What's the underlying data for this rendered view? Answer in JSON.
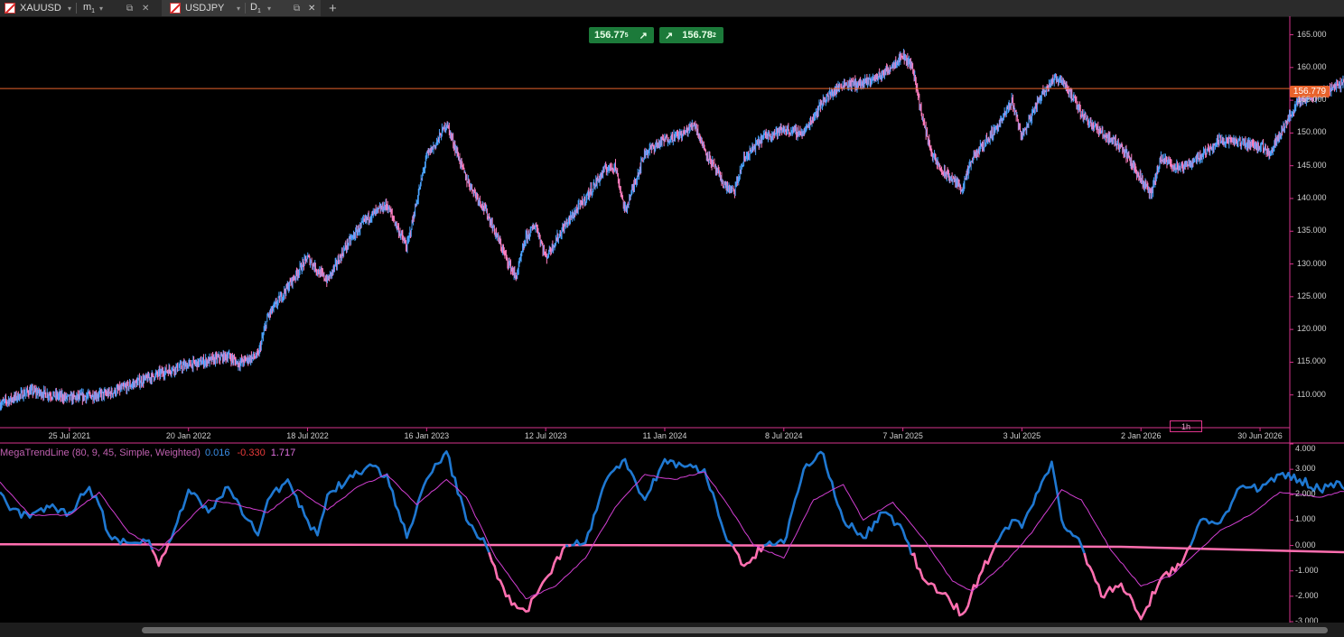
{
  "tabs": [
    {
      "symbol": "XAUUSD",
      "timeframe": "m",
      "timeframe_sub": "1"
    },
    {
      "symbol": "USDJPY",
      "timeframe": "D",
      "timeframe_sub": "1"
    }
  ],
  "controls": {
    "dropdown_glyph": "▾",
    "detach_glyph": "⧉",
    "close_glyph": "✕",
    "new_tab_glyph": "+"
  },
  "trade": {
    "sell_main": "156.77",
    "sell_sup": "5",
    "sell_arrow": "↗",
    "buy_arrow": "↗",
    "buy_main": "156.78",
    "buy_sup": "2",
    "sell_color": "#1c7a3a",
    "buy_color": "#1c7a3a"
  },
  "current_price": "156.779",
  "timeframe_badge": "1h",
  "indicator": {
    "name": "MegaTrendLine (80, 9, 45, Simple, Weighted)",
    "v1": "0.016",
    "v2": "-0.330",
    "v3": "1.717"
  },
  "colors": {
    "candle_up": "#4aa3ff",
    "candle_down": "#ff7fbf",
    "price_line": "#e8632c",
    "axis": "#d6338c",
    "ind_up": "#1f78d1",
    "ind_down": "#ff6fb0",
    "ind_signal": "#d23fd2"
  },
  "chart_data": [
    {
      "type": "candlestick",
      "title": "USDJPY D1",
      "ylim": [
        105,
        167
      ],
      "y_ticks": [
        "110.000",
        "115.000",
        "120.000",
        "125.000",
        "130.000",
        "135.000",
        "140.000",
        "145.000",
        "150.000",
        "155.000",
        "160.000",
        "165.000"
      ],
      "x_ticks": [
        "25 Jul 2021",
        "20 Jan 2022",
        "18 Jul 2022",
        "16 Jan 2023",
        "12 Jul 2023",
        "11 Jan 2024",
        "8 Jul 2024",
        "7 Jan 2025",
        "3 Jul 2025",
        "2 Jan 2026",
        "30 Jun 2026"
      ],
      "x_tick_months": [
        7,
        13,
        19,
        25,
        31,
        37,
        43,
        49,
        55,
        61,
        67
      ],
      "x_start_month": 3.5,
      "x_end_month": 68.5,
      "last_month": 62.9,
      "close_path": [
        [
          3.5,
          108.6
        ],
        [
          5,
          110.6
        ],
        [
          7,
          109.5
        ],
        [
          9,
          110.2
        ],
        [
          11,
          112.6
        ],
        [
          12,
          113.8
        ],
        [
          13,
          114.6
        ],
        [
          14,
          115.2
        ],
        [
          15,
          116.0
        ],
        [
          15.5,
          114.8
        ],
        [
          16,
          115.5
        ],
        [
          16.5,
          116.0
        ],
        [
          17,
          122
        ],
        [
          18,
          126.5
        ],
        [
          19,
          131
        ],
        [
          19.5,
          129
        ],
        [
          20,
          127.5
        ],
        [
          21,
          133
        ],
        [
          22,
          137
        ],
        [
          23,
          139
        ],
        [
          24,
          132.5
        ],
        [
          25,
          146.5
        ],
        [
          25.5,
          148.5
        ],
        [
          26,
          151.5
        ],
        [
          27,
          143
        ],
        [
          28,
          138
        ],
        [
          29,
          131
        ],
        [
          29.5,
          127.9
        ],
        [
          30,
          134
        ],
        [
          30.5,
          136
        ],
        [
          31,
          131
        ],
        [
          32,
          136
        ],
        [
          33,
          140
        ],
        [
          34,
          144.5
        ],
        [
          34.5,
          145
        ],
        [
          35,
          138
        ],
        [
          36,
          147
        ],
        [
          37,
          149
        ],
        [
          38,
          150
        ],
        [
          38.5,
          151.5
        ],
        [
          39,
          147.5
        ],
        [
          40,
          142
        ],
        [
          40.5,
          141
        ],
        [
          41,
          146
        ],
        [
          42,
          149.5
        ],
        [
          43,
          150.5
        ],
        [
          44,
          150
        ],
        [
          45,
          155
        ],
        [
          46,
          157.5
        ],
        [
          47,
          157.5
        ],
        [
          48,
          159
        ],
        [
          49,
          161.9
        ],
        [
          49.5,
          160
        ],
        [
          50,
          152
        ],
        [
          50.5,
          146.5
        ],
        [
          51,
          144
        ],
        [
          51.5,
          143
        ],
        [
          52,
          141.5
        ],
        [
          52.5,
          146
        ],
        [
          53,
          148
        ],
        [
          54,
          152
        ],
        [
          54.5,
          155
        ],
        [
          55,
          149.5
        ],
        [
          56,
          156
        ],
        [
          56.5,
          158
        ],
        [
          57,
          158.3
        ],
        [
          58,
          153
        ],
        [
          59,
          150
        ],
        [
          60,
          148
        ],
        [
          61,
          143
        ],
        [
          61.5,
          140.5
        ],
        [
          62,
          146
        ],
        [
          63,
          144.5
        ],
        [
          64,
          146.5
        ],
        [
          65,
          149
        ],
        [
          66,
          148.5
        ],
        [
          67,
          148
        ],
        [
          67.5,
          147
        ],
        [
          68,
          150
        ],
        [
          69,
          155
        ],
        [
          70,
          156
        ],
        [
          71,
          157.5
        ],
        [
          72,
          158.5
        ],
        [
          73,
          156
        ],
        [
          74,
          158
        ],
        [
          74.5,
          159.5
        ],
        [
          75,
          153
        ],
        [
          75.5,
          157
        ],
        [
          76,
          153
        ],
        [
          77,
          158.5
        ],
        [
          78,
          160
        ],
        [
          79,
          159
        ],
        [
          79.5,
          156.8
        ]
      ],
      "months_per_candle": 0.033
    },
    {
      "type": "line",
      "title": "MegaTrendLine (80, 9, 45, Simple, Weighted)",
      "ylim": [
        -3,
        4
      ],
      "y_ticks": [
        "4.000",
        "3.000",
        "2.000",
        "1.000",
        "0.000",
        "-1.000",
        "-2.000",
        "-3.000"
      ],
      "series": [
        {
          "name": "Osc",
          "path": [
            [
              3.5,
              2.1
            ],
            [
              4,
              1.4
            ],
            [
              5,
              1.1
            ],
            [
              6,
              1.5
            ],
            [
              7,
              1.3
            ],
            [
              8,
              2.3
            ],
            [
              8.5,
              1.6
            ],
            [
              9,
              0.4
            ],
            [
              10,
              0.1
            ],
            [
              11,
              0.2
            ],
            [
              11.5,
              -0.8
            ],
            [
              12,
              0.1
            ],
            [
              13,
              2.2
            ],
            [
              14,
              1.3
            ],
            [
              15,
              2.3
            ],
            [
              16,
              1.0
            ],
            [
              16.5,
              0.4
            ],
            [
              17,
              1.8
            ],
            [
              18,
              2.6
            ],
            [
              19,
              1.0
            ],
            [
              19.5,
              0.4
            ],
            [
              20,
              2.0
            ],
            [
              21,
              2.6
            ],
            [
              22,
              3.1
            ],
            [
              23,
              2.8
            ],
            [
              24,
              0.3
            ],
            [
              25,
              2.6
            ],
            [
              26,
              3.7
            ],
            [
              27,
              1.0
            ],
            [
              28,
              0.0
            ],
            [
              29,
              -2.0
            ],
            [
              30,
              -2.6
            ],
            [
              31,
              -1.3
            ],
            [
              32,
              0.0
            ],
            [
              33,
              0.1
            ],
            [
              34,
              2.5
            ],
            [
              35,
              3.4
            ],
            [
              36,
              1.8
            ],
            [
              37,
              3.4
            ],
            [
              38,
              3.1
            ],
            [
              39,
              3.0
            ],
            [
              40,
              0.5
            ],
            [
              41,
              -0.8
            ],
            [
              42,
              0.0
            ],
            [
              43,
              0.1
            ],
            [
              44,
              3.0
            ],
            [
              45,
              3.6
            ],
            [
              46,
              1.0
            ],
            [
              47,
              0.3
            ],
            [
              48,
              1.3
            ],
            [
              49,
              0.6
            ],
            [
              50,
              -1.3
            ],
            [
              51,
              -1.9
            ],
            [
              52,
              -2.7
            ],
            [
              53,
              -1.0
            ],
            [
              54,
              0.5
            ],
            [
              54.5,
              1.0
            ],
            [
              55,
              0.7
            ],
            [
              56,
              2.5
            ],
            [
              56.5,
              3.3
            ],
            [
              57,
              1.0
            ],
            [
              58,
              0.0
            ],
            [
              59,
              -2.0
            ],
            [
              60,
              -1.5
            ],
            [
              61,
              -2.9
            ],
            [
              62,
              -1.3
            ],
            [
              63,
              -0.8
            ],
            [
              63.5,
              0.0
            ],
            [
              64,
              1.0
            ],
            [
              65,
              0.9
            ],
            [
              66,
              2.3
            ],
            [
              67,
              2.2
            ],
            [
              68,
              2.8
            ],
            [
              69,
              2.6
            ],
            [
              70,
              2.2
            ],
            [
              71,
              2.5
            ],
            [
              72,
              2.0
            ],
            [
              73,
              0.3
            ],
            [
              74,
              1.0
            ],
            [
              75,
              -1.0
            ],
            [
              75.5,
              0.0
            ],
            [
              76,
              2.4
            ],
            [
              77,
              2.1
            ],
            [
              78,
              1.7
            ],
            [
              78.5,
              2.0
            ],
            [
              79,
              1.0
            ],
            [
              79.5,
              0.02
            ]
          ]
        },
        {
          "name": "Signal",
          "path": [
            [
              3.5,
              2.5
            ],
            [
              5,
              1.2
            ],
            [
              7,
              1.2
            ],
            [
              8.5,
              2.1
            ],
            [
              10,
              0.5
            ],
            [
              11.5,
              -0.2
            ],
            [
              12.5,
              0.6
            ],
            [
              14,
              1.8
            ],
            [
              15.5,
              1.6
            ],
            [
              17,
              1.3
            ],
            [
              18.5,
              2.2
            ],
            [
              20,
              1.4
            ],
            [
              21.5,
              2.3
            ],
            [
              23,
              2.8
            ],
            [
              24.5,
              1.6
            ],
            [
              26,
              2.6
            ],
            [
              27,
              1.9
            ],
            [
              28.5,
              -0.5
            ],
            [
              30,
              -2.1
            ],
            [
              31.5,
              -1.6
            ],
            [
              33,
              -0.5
            ],
            [
              34.5,
              1.5
            ],
            [
              36,
              2.8
            ],
            [
              37.5,
              2.6
            ],
            [
              39,
              2.9
            ],
            [
              40,
              1.8
            ],
            [
              41.5,
              0.0
            ],
            [
              43,
              -0.5
            ],
            [
              44.5,
              1.8
            ],
            [
              46,
              2.4
            ],
            [
              47,
              1.0
            ],
            [
              48.5,
              1.7
            ],
            [
              50,
              0.3
            ],
            [
              51.5,
              -1.4
            ],
            [
              52.5,
              -1.8
            ],
            [
              54,
              -0.8
            ],
            [
              55.5,
              0.5
            ],
            [
              57,
              2.2
            ],
            [
              58,
              1.8
            ],
            [
              59.5,
              -0.2
            ],
            [
              61,
              -1.6
            ],
            [
              62.5,
              -1.2
            ],
            [
              63.5,
              -0.5
            ],
            [
              65,
              0.6
            ],
            [
              66.5,
              1.2
            ],
            [
              68,
              2.1
            ],
            [
              70,
              1.9
            ],
            [
              71.5,
              2.2
            ],
            [
              73,
              1.5
            ],
            [
              74,
              0.6
            ],
            [
              75.5,
              -0.2
            ],
            [
              77,
              1.3
            ],
            [
              78.5,
              1.8
            ],
            [
              79.5,
              1.7
            ]
          ]
        },
        {
          "name": "Base",
          "path": [
            [
              3.5,
              0.05
            ],
            [
              45,
              0.0
            ],
            [
              60,
              -0.05
            ],
            [
              73,
              -0.3
            ],
            [
              79.5,
              -0.33
            ]
          ]
        }
      ]
    }
  ]
}
